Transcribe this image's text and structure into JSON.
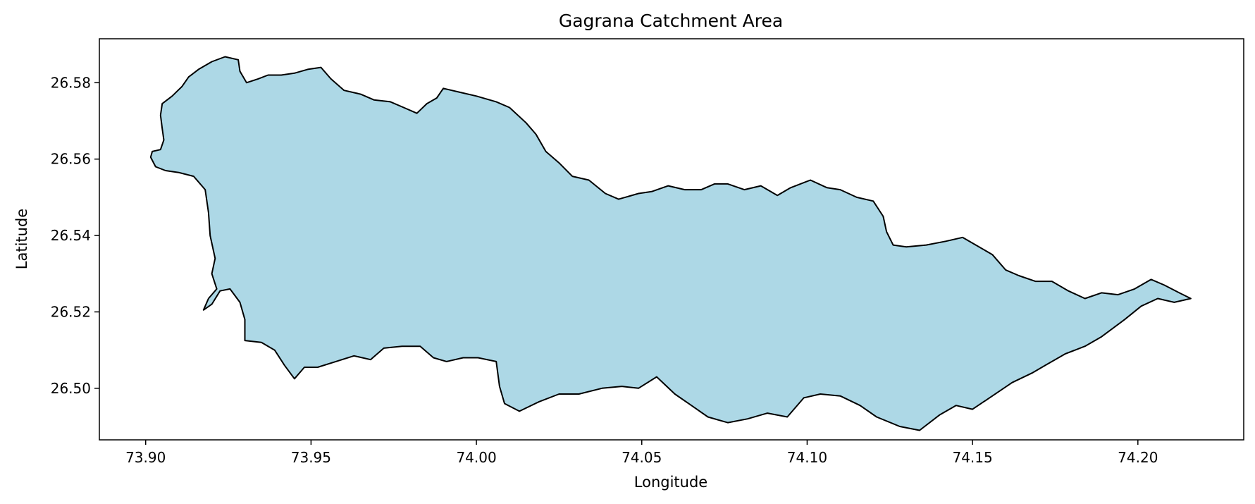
{
  "chart_data": {
    "type": "map",
    "title": "Gagrana Catchment Area",
    "xlabel": "Longitude",
    "ylabel": "Latitude",
    "xlim": [
      73.886,
      74.232
    ],
    "ylim": [
      26.4865,
      26.5915
    ],
    "xticks": [
      73.9,
      73.95,
      74.0,
      74.05,
      74.1,
      74.15,
      74.2
    ],
    "xtick_labels": [
      "73.90",
      "73.95",
      "74.00",
      "74.05",
      "74.10",
      "74.15",
      "74.20"
    ],
    "yticks": [
      26.5,
      26.52,
      26.54,
      26.56,
      26.58
    ],
    "ytick_labels": [
      "26.50",
      "26.52",
      "26.54",
      "26.56",
      "26.58"
    ],
    "grid": false,
    "fill_color": "#add8e6",
    "edge_color": "#000000",
    "boundary": [
      [
        73.9015,
        26.5605
      ],
      [
        73.903,
        26.558
      ],
      [
        73.906,
        26.557
      ],
      [
        73.91,
        26.5565
      ],
      [
        73.9145,
        26.5555
      ],
      [
        73.918,
        26.552
      ],
      [
        73.919,
        26.546
      ],
      [
        73.9195,
        26.54
      ],
      [
        73.921,
        26.534
      ],
      [
        73.92,
        26.53
      ],
      [
        73.9215,
        26.526
      ],
      [
        73.919,
        26.5235
      ],
      [
        73.9175,
        26.5205
      ],
      [
        73.92,
        26.522
      ],
      [
        73.9225,
        26.5255
      ],
      [
        73.9255,
        26.526
      ],
      [
        73.9285,
        26.5225
      ],
      [
        73.93,
        26.518
      ],
      [
        73.93,
        26.5125
      ],
      [
        73.935,
        26.512
      ],
      [
        73.939,
        26.51
      ],
      [
        73.942,
        26.506
      ],
      [
        73.945,
        26.5025
      ],
      [
        73.948,
        26.5055
      ],
      [
        73.952,
        26.5055
      ],
      [
        73.9575,
        26.507
      ],
      [
        73.963,
        26.5085
      ],
      [
        73.968,
        26.5075
      ],
      [
        73.972,
        26.5105
      ],
      [
        73.9775,
        26.511
      ],
      [
        73.983,
        26.511
      ],
      [
        73.987,
        26.508
      ],
      [
        73.991,
        26.507
      ],
      [
        73.996,
        26.508
      ],
      [
        74.0005,
        26.508
      ],
      [
        74.006,
        26.507
      ],
      [
        74.007,
        26.5005
      ],
      [
        74.0085,
        26.496
      ],
      [
        74.013,
        26.494
      ],
      [
        74.019,
        26.4965
      ],
      [
        74.025,
        26.4985
      ],
      [
        74.031,
        26.4985
      ],
      [
        74.038,
        26.5
      ],
      [
        74.044,
        26.5005
      ],
      [
        74.049,
        26.5
      ],
      [
        74.0545,
        26.503
      ],
      [
        74.06,
        26.4985
      ],
      [
        74.065,
        26.4955
      ],
      [
        74.07,
        26.4925
      ],
      [
        74.076,
        26.491
      ],
      [
        74.082,
        26.492
      ],
      [
        74.088,
        26.4935
      ],
      [
        74.094,
        26.4925
      ],
      [
        74.099,
        26.4975
      ],
      [
        74.104,
        26.4985
      ],
      [
        74.11,
        26.498
      ],
      [
        74.116,
        26.4955
      ],
      [
        74.121,
        26.4925
      ],
      [
        74.128,
        26.49
      ],
      [
        74.134,
        26.489
      ],
      [
        74.14,
        26.493
      ],
      [
        74.145,
        26.4955
      ],
      [
        74.15,
        26.4945
      ],
      [
        74.156,
        26.498
      ],
      [
        74.162,
        26.5015
      ],
      [
        74.168,
        26.504
      ],
      [
        74.172,
        26.506
      ],
      [
        74.178,
        26.509
      ],
      [
        74.184,
        26.511
      ],
      [
        74.189,
        26.5135
      ],
      [
        74.196,
        26.518
      ],
      [
        74.201,
        26.5215
      ],
      [
        74.206,
        26.5235
      ],
      [
        74.211,
        26.5225
      ],
      [
        74.216,
        26.5235
      ],
      [
        74.2125,
        26.525
      ],
      [
        74.208,
        26.527
      ],
      [
        74.204,
        26.5285
      ],
      [
        74.199,
        26.526
      ],
      [
        74.194,
        26.5245
      ],
      [
        74.189,
        26.525
      ],
      [
        74.184,
        26.5235
      ],
      [
        74.179,
        26.5255
      ],
      [
        74.174,
        26.528
      ],
      [
        74.169,
        26.528
      ],
      [
        74.164,
        26.5295
      ],
      [
        74.16,
        26.531
      ],
      [
        74.156,
        26.535
      ],
      [
        74.151,
        26.5375
      ],
      [
        74.147,
        26.5395
      ],
      [
        74.142,
        26.5385
      ],
      [
        74.136,
        26.5375
      ],
      [
        74.13,
        26.537
      ],
      [
        74.126,
        26.5375
      ],
      [
        74.124,
        26.541
      ],
      [
        74.123,
        26.545
      ],
      [
        74.12,
        26.549
      ],
      [
        74.115,
        26.55
      ],
      [
        74.11,
        26.552
      ],
      [
        74.106,
        26.5525
      ],
      [
        74.101,
        26.5545
      ],
      [
        74.095,
        26.5525
      ],
      [
        74.091,
        26.5505
      ],
      [
        74.086,
        26.553
      ],
      [
        74.081,
        26.552
      ],
      [
        74.076,
        26.5535
      ],
      [
        74.072,
        26.5535
      ],
      [
        74.068,
        26.552
      ],
      [
        74.063,
        26.552
      ],
      [
        74.058,
        26.553
      ],
      [
        74.053,
        26.5515
      ],
      [
        74.049,
        26.551
      ],
      [
        74.043,
        26.5495
      ],
      [
        74.039,
        26.551
      ],
      [
        74.034,
        26.5545
      ],
      [
        74.029,
        26.5555
      ],
      [
        74.025,
        26.559
      ],
      [
        74.021,
        26.562
      ],
      [
        74.018,
        26.5665
      ],
      [
        74.015,
        26.5695
      ],
      [
        74.01,
        26.5735
      ],
      [
        74.006,
        26.575
      ],
      [
        74.0,
        26.5765
      ],
      [
        73.995,
        26.5775
      ],
      [
        73.99,
        26.5785
      ],
      [
        73.988,
        26.576
      ],
      [
        73.985,
        26.5745
      ],
      [
        73.982,
        26.572
      ],
      [
        73.978,
        26.5735
      ],
      [
        73.974,
        26.575
      ],
      [
        73.969,
        26.5755
      ],
      [
        73.965,
        26.577
      ],
      [
        73.96,
        26.578
      ],
      [
        73.956,
        26.581
      ],
      [
        73.953,
        26.584
      ],
      [
        73.949,
        26.5835
      ],
      [
        73.945,
        26.5825
      ],
      [
        73.941,
        26.582
      ],
      [
        73.937,
        26.582
      ],
      [
        73.934,
        26.581
      ],
      [
        73.9305,
        26.58
      ],
      [
        73.9285,
        26.583
      ],
      [
        73.928,
        26.586
      ],
      [
        73.924,
        26.5868
      ],
      [
        73.92,
        26.5855
      ],
      [
        73.916,
        26.5835
      ],
      [
        73.913,
        26.5815
      ],
      [
        73.911,
        26.579
      ],
      [
        73.908,
        26.5765
      ],
      [
        73.905,
        26.5745
      ],
      [
        73.9045,
        26.5715
      ],
      [
        73.905,
        26.568
      ],
      [
        73.9055,
        26.565
      ],
      [
        73.9045,
        26.5625
      ],
      [
        73.902,
        26.562
      ],
      [
        73.9015,
        26.5605
      ]
    ]
  }
}
